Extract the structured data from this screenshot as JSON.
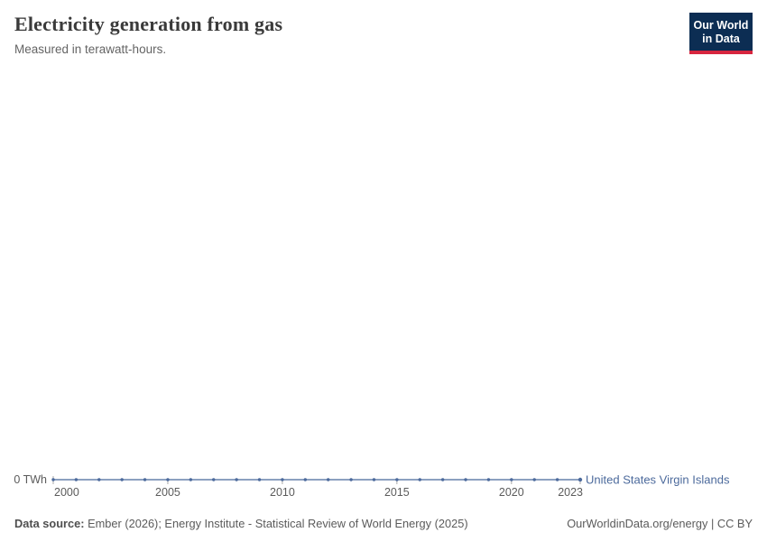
{
  "header": {
    "title": "Electricity generation from gas",
    "subtitle": "Measured in terawatt-hours.",
    "logo": {
      "line1": "Our World",
      "line2": "in Data",
      "bg_color": "#0C2D53",
      "accent_color": "#D7263F"
    }
  },
  "chart_data": {
    "type": "line",
    "title": "Electricity generation from gas",
    "ylabel": "terawatt-hours",
    "grid": false,
    "legend_position": "end-of-line-label",
    "x": [
      2000,
      2001,
      2002,
      2003,
      2004,
      2005,
      2006,
      2007,
      2008,
      2009,
      2010,
      2011,
      2012,
      2013,
      2014,
      2015,
      2016,
      2017,
      2018,
      2019,
      2020,
      2021,
      2022,
      2023
    ],
    "series": [
      {
        "name": "United States Virgin Islands",
        "color": "#4C6A9C",
        "values": [
          0,
          0,
          0,
          0,
          0,
          0,
          0,
          0,
          0,
          0,
          0,
          0,
          0,
          0,
          0,
          0,
          0,
          0,
          0,
          0,
          0,
          0,
          0,
          0
        ]
      }
    ],
    "x_ticks": [
      2000,
      2005,
      2010,
      2015,
      2020,
      2023
    ],
    "xlim": [
      2000,
      2023
    ],
    "ylim": [
      0,
      0
    ],
    "y_ticks": [
      {
        "value": 0,
        "label": "0 TWh"
      }
    ],
    "axis_text_color": "#5b5b5b",
    "tick_mark_color": "#a8a8a8"
  },
  "footer": {
    "datasource_label": "Data source:",
    "datasource_text": " Ember (2026); Energy Institute - Statistical Review of World Energy (2025)",
    "attribution": "OurWorldinData.org/energy | CC BY"
  }
}
